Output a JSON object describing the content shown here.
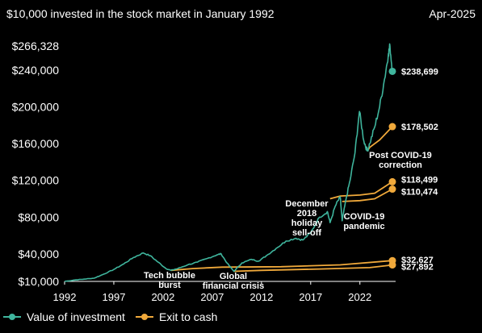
{
  "chart_data": {
    "type": "line",
    "title": "$10,000 invested in the stock market in January 1992",
    "date_label": "Apr-2025",
    "xlim": [
      1992,
      2025.3
    ],
    "ylim": [
      10000,
      266328
    ],
    "y_ticks": [
      {
        "value": 266328,
        "label": "$266,328"
      },
      {
        "value": 240000,
        "label": "$240,000"
      },
      {
        "value": 200000,
        "label": "$200,000"
      },
      {
        "value": 160000,
        "label": "$160,000"
      },
      {
        "value": 120000,
        "label": "$120,000"
      },
      {
        "value": 80000,
        "label": "$80,000"
      },
      {
        "value": 40000,
        "label": "$40,000"
      },
      {
        "value": 10000,
        "label": "$10,000"
      }
    ],
    "x_ticks": [
      {
        "value": 1992,
        "label": "1992"
      },
      {
        "value": 1997,
        "label": "1997"
      },
      {
        "value": 2002,
        "label": "2002"
      },
      {
        "value": 2007,
        "label": "2007"
      },
      {
        "value": 2012,
        "label": "2012"
      },
      {
        "value": 2017,
        "label": "2017"
      },
      {
        "value": 2022,
        "label": "2022"
      }
    ],
    "series": [
      {
        "name": "Value of investment",
        "color": "#3fb59d",
        "points": [
          [
            1992.0,
            10000
          ],
          [
            1993.0,
            11500
          ],
          [
            1994.0,
            12500
          ],
          [
            1995.0,
            13500
          ],
          [
            1996.0,
            18000
          ],
          [
            1997.0,
            23000
          ],
          [
            1998.0,
            29000
          ],
          [
            1999.0,
            36000
          ],
          [
            2000.0,
            41000
          ],
          [
            2000.7,
            38000
          ],
          [
            2001.5,
            31000
          ],
          [
            2002.3,
            24000
          ],
          [
            2002.8,
            22000
          ],
          [
            2003.5,
            24000
          ],
          [
            2004.5,
            28000
          ],
          [
            2005.5,
            31000
          ],
          [
            2006.5,
            35000
          ],
          [
            2007.5,
            39000
          ],
          [
            2007.9,
            40000
          ],
          [
            2008.5,
            30000
          ],
          [
            2009.2,
            21000
          ],
          [
            2010.0,
            30000
          ],
          [
            2011.0,
            34000
          ],
          [
            2011.7,
            32000
          ],
          [
            2012.5,
            38000
          ],
          [
            2013.5,
            46000
          ],
          [
            2014.5,
            54000
          ],
          [
            2015.5,
            57000
          ],
          [
            2016.2,
            55000
          ],
          [
            2017.0,
            63000
          ],
          [
            2017.9,
            80000
          ],
          [
            2018.7,
            86000
          ],
          [
            2018.97,
            74000
          ],
          [
            2019.5,
            92000
          ],
          [
            2020.0,
            102000
          ],
          [
            2020.2,
            76000
          ],
          [
            2020.6,
            100000
          ],
          [
            2021.0,
            120000
          ],
          [
            2021.5,
            150000
          ],
          [
            2021.95,
            195000
          ],
          [
            2022.4,
            163000
          ],
          [
            2022.75,
            152000
          ],
          [
            2023.0,
            160000
          ],
          [
            2023.5,
            178000
          ],
          [
            2024.0,
            200000
          ],
          [
            2024.5,
            230000
          ],
          [
            2024.9,
            258000
          ],
          [
            2025.05,
            266328
          ],
          [
            2025.3,
            238699
          ]
        ],
        "end_label": "$238,699"
      },
      {
        "name": "Exit to cash",
        "color": "#f0a93b",
        "note": "Exit-to-cash scenarios after each downturn",
        "paths": [
          {
            "points": [
              [
                2022.75,
                152000
              ],
              [
                2023.0,
                156000
              ],
              [
                2024.0,
                164000
              ],
              [
                2025.3,
                178502
              ]
            ],
            "end_label": "$178,502"
          },
          {
            "points": [
              [
                2018.97,
                100000
              ],
              [
                2020.0,
                103000
              ],
              [
                2022.0,
                104000
              ],
              [
                2023.5,
                106000
              ],
              [
                2025.3,
                118499
              ]
            ],
            "end_label": "$118,499"
          },
          {
            "points": [
              [
                2020.2,
                97000
              ],
              [
                2022.0,
                98000
              ],
              [
                2023.5,
                100000
              ],
              [
                2025.3,
                110474
              ]
            ],
            "end_label": "$110,474"
          },
          {
            "points": [
              [
                2002.8,
                22000
              ],
              [
                2005.0,
                24000
              ],
              [
                2008.0,
                25500
              ],
              [
                2014.0,
                26000
              ],
              [
                2020.0,
                28000
              ],
              [
                2025.3,
                32627
              ]
            ],
            "end_label": "$32,627"
          },
          {
            "points": [
              [
                2009.2,
                21000
              ],
              [
                2012.0,
                22000
              ],
              [
                2018.0,
                23500
              ],
              [
                2023.0,
                25000
              ],
              [
                2025.3,
                27892
              ]
            ],
            "end_label": "$27,892"
          }
        ]
      }
    ],
    "annotations": [
      {
        "lines": [
          "Tech bubble",
          "burst"
        ]
      },
      {
        "lines": [
          "Global",
          "financial crisis"
        ]
      },
      {
        "lines": [
          "December",
          "2018",
          "holiday",
          "sell-off"
        ]
      },
      {
        "lines": [
          "COVID-19",
          "pandemic"
        ]
      },
      {
        "lines": [
          "Post COVID-19",
          "correction"
        ]
      }
    ],
    "legend": [
      {
        "label": "Value of investment",
        "color": "#3fb59d"
      },
      {
        "label": "Exit to cash",
        "color": "#f0a93b"
      }
    ],
    "legend_position": "bottom-left"
  }
}
